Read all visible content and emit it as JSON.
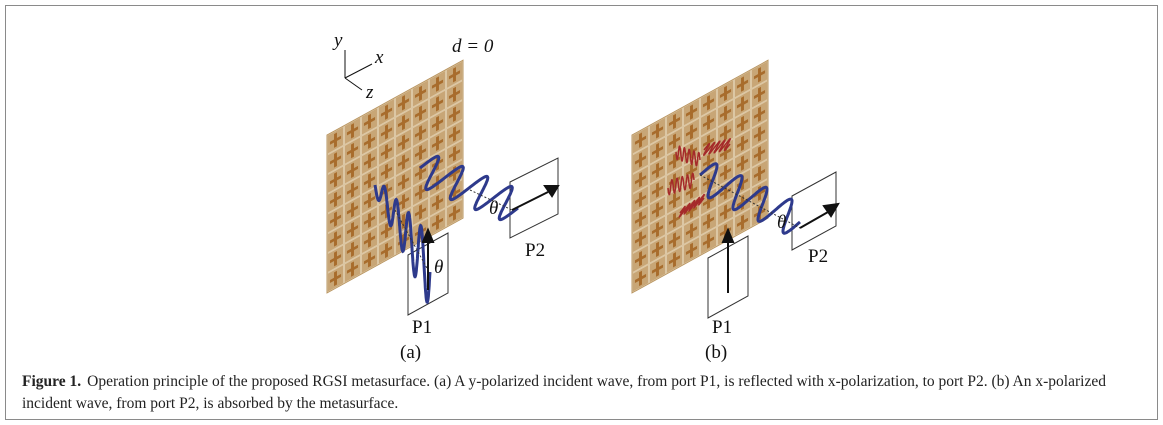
{
  "figure": {
    "panel_a": {
      "axis_y": "y",
      "axis_x": "x",
      "axis_z": "z",
      "distance": "d = 0",
      "angle_1": "θ",
      "angle_2": "θ",
      "port_1": "P1",
      "port_2": "P2",
      "label": "(a)"
    },
    "panel_b": {
      "angle": "θ",
      "port_1": "P1",
      "port_2": "P2",
      "label": "(b)"
    },
    "caption": {
      "label": "Figure 1.",
      "text": "Operation principle of the proposed RGSI metasurface. (a) A y-polarized incident wave, from port P1, is reflected with x-polarization, to port P2. (b) An x-polarized incident wave, from port P2, is absorbed by the metasurface."
    }
  }
}
